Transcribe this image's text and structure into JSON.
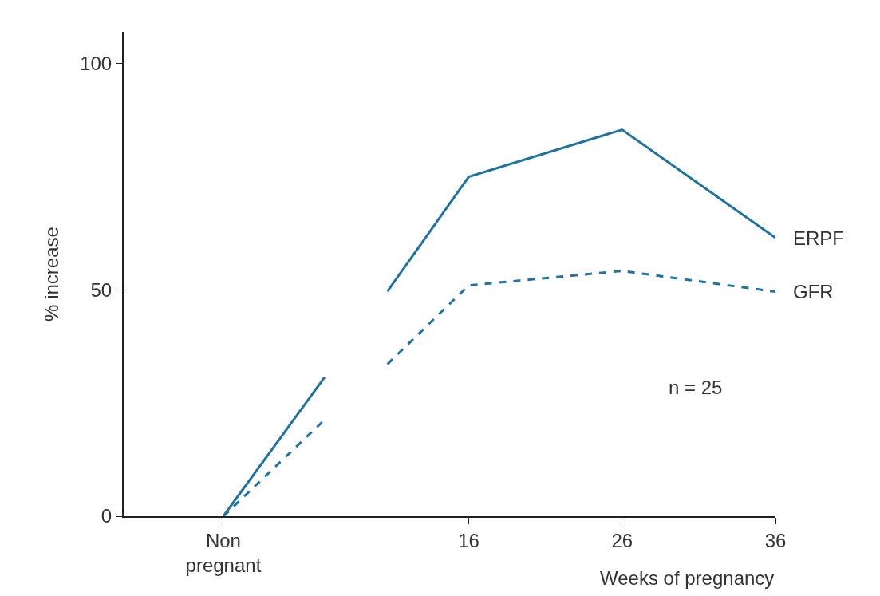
{
  "chart_data": {
    "type": "line",
    "xlabel": "Weeks of pregnancy",
    "ylabel": "% increase",
    "x": [
      0,
      6.6,
      8.6,
      10.7,
      16,
      26,
      36
    ],
    "series": [
      {
        "name": "ERPF",
        "color": "#1e73a0",
        "line_style": "solid",
        "values": [
          0,
          30.7,
          null,
          49.7,
          75,
          85.4,
          61.5
        ]
      },
      {
        "name": "GFR",
        "color": "#1e73a0",
        "line_style": "dashed",
        "values": [
          0,
          21.3,
          null,
          33.6,
          51,
          54.2,
          49.6
        ]
      }
    ],
    "xlim": [
      -6.5,
      36
    ],
    "xticks": [
      {
        "value": 0,
        "label": "Non\npregnant"
      },
      16,
      26,
      36
    ],
    "ylim": [
      0,
      107
    ],
    "yticks": [
      0,
      50,
      100
    ],
    "annotations": [
      "n = 25"
    ],
    "legend": false,
    "marker": "none"
  }
}
